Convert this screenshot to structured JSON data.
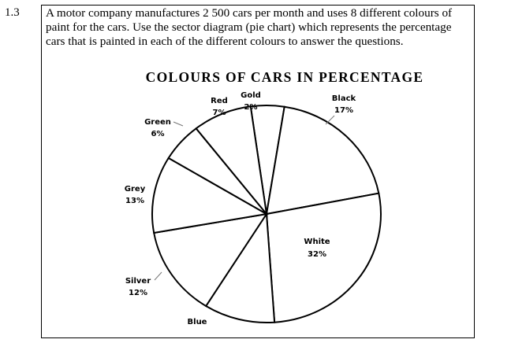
{
  "question": {
    "number": "1.3",
    "text_lines": [
      "A motor company manufactures 2 500 cars per month and uses 8 different colours of",
      "paint for the cars. Use the sector diagram (pie chart) which represents the percentage",
      "cars that is painted in each of the different colours to answer the questions."
    ]
  },
  "chart_data": {
    "type": "pie",
    "title": "COLOURS OF CARS IN PERCENTAGE",
    "slices": [
      {
        "name": "Gold",
        "value": "2%"
      },
      {
        "name": "Black",
        "value": "17%"
      },
      {
        "name": "White",
        "value": "32%"
      },
      {
        "name": "Blue",
        "value": null
      },
      {
        "name": "Silver",
        "value": "12%"
      },
      {
        "name": "Grey",
        "value": "13%"
      },
      {
        "name": "Green",
        "value": "6%"
      },
      {
        "name": "Red",
        "value": "7%"
      }
    ],
    "fill": "#ffffff",
    "stroke": "#000000"
  }
}
